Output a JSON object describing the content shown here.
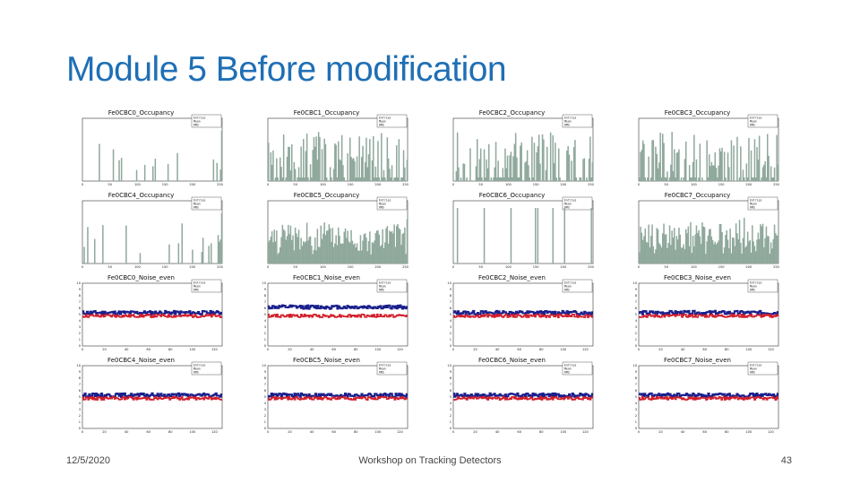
{
  "slide": {
    "title": "Module 5 Before modification",
    "footer_date": "12/5/2020",
    "footer_center": "Workshop on Tracking Detectors",
    "page_number": "43"
  },
  "colors": {
    "title": "#1f6fb5",
    "occupancy_fill": "#8fa89c",
    "noise_blue": "#1a1f8c",
    "noise_red": "#d21f2b"
  },
  "panels": [
    {
      "title": "Fe0CBC0_Occupancy",
      "type": "occupancy"
    },
    {
      "title": "Fe0CBC1_Occupancy",
      "type": "occupancy"
    },
    {
      "title": "Fe0CBC2_Occupancy",
      "type": "occupancy"
    },
    {
      "title": "Fe0CBC3_Occupancy",
      "type": "occupancy"
    },
    {
      "title": "Fe0CBC4_Occupancy",
      "type": "occupancy"
    },
    {
      "title": "Fe0CBC5_Occupancy",
      "type": "occupancy"
    },
    {
      "title": "Fe0CBC6_Occupancy",
      "type": "occupancy"
    },
    {
      "title": "Fe0CBC7_Occupancy",
      "type": "occupancy"
    },
    {
      "title": "Fe0CBC0_Noise_even",
      "type": "noise"
    },
    {
      "title": "Fe0CBC1_Noise_even",
      "type": "noise"
    },
    {
      "title": "Fe0CBC2_Noise_even",
      "type": "noise"
    },
    {
      "title": "Fe0CBC3_Noise_even",
      "type": "noise"
    },
    {
      "title": "Fe0CBC4_Noise_even",
      "type": "noise"
    },
    {
      "title": "Fe0CBC5_Noise_even",
      "type": "noise"
    },
    {
      "title": "Fe0CBC6_Noise_even",
      "type": "noise"
    },
    {
      "title": "Fe0CBC7_Noise_even",
      "type": "noise"
    }
  ],
  "chart_data": {
    "type": "bar",
    "occupancy_xlim": [
      0,
      254
    ],
    "occupancy_xticks": [
      "0",
      "50",
      "100",
      "150",
      "200",
      "250"
    ],
    "noise_xlim": [
      0,
      127
    ],
    "noise_xticks": [
      "0",
      "20",
      "40",
      "60",
      "80",
      "100",
      "120"
    ],
    "noise_ylim": [
      0,
      10
    ],
    "noise_yticks": [
      "0",
      "1",
      "2",
      "3",
      "4",
      "5",
      "6",
      "7",
      "8",
      "9",
      "10"
    ],
    "noise_levels": {
      "blue": 5.3,
      "red": 4.8
    },
    "stats_labels": [
      "Entries",
      "Mean",
      "RMS"
    ]
  }
}
